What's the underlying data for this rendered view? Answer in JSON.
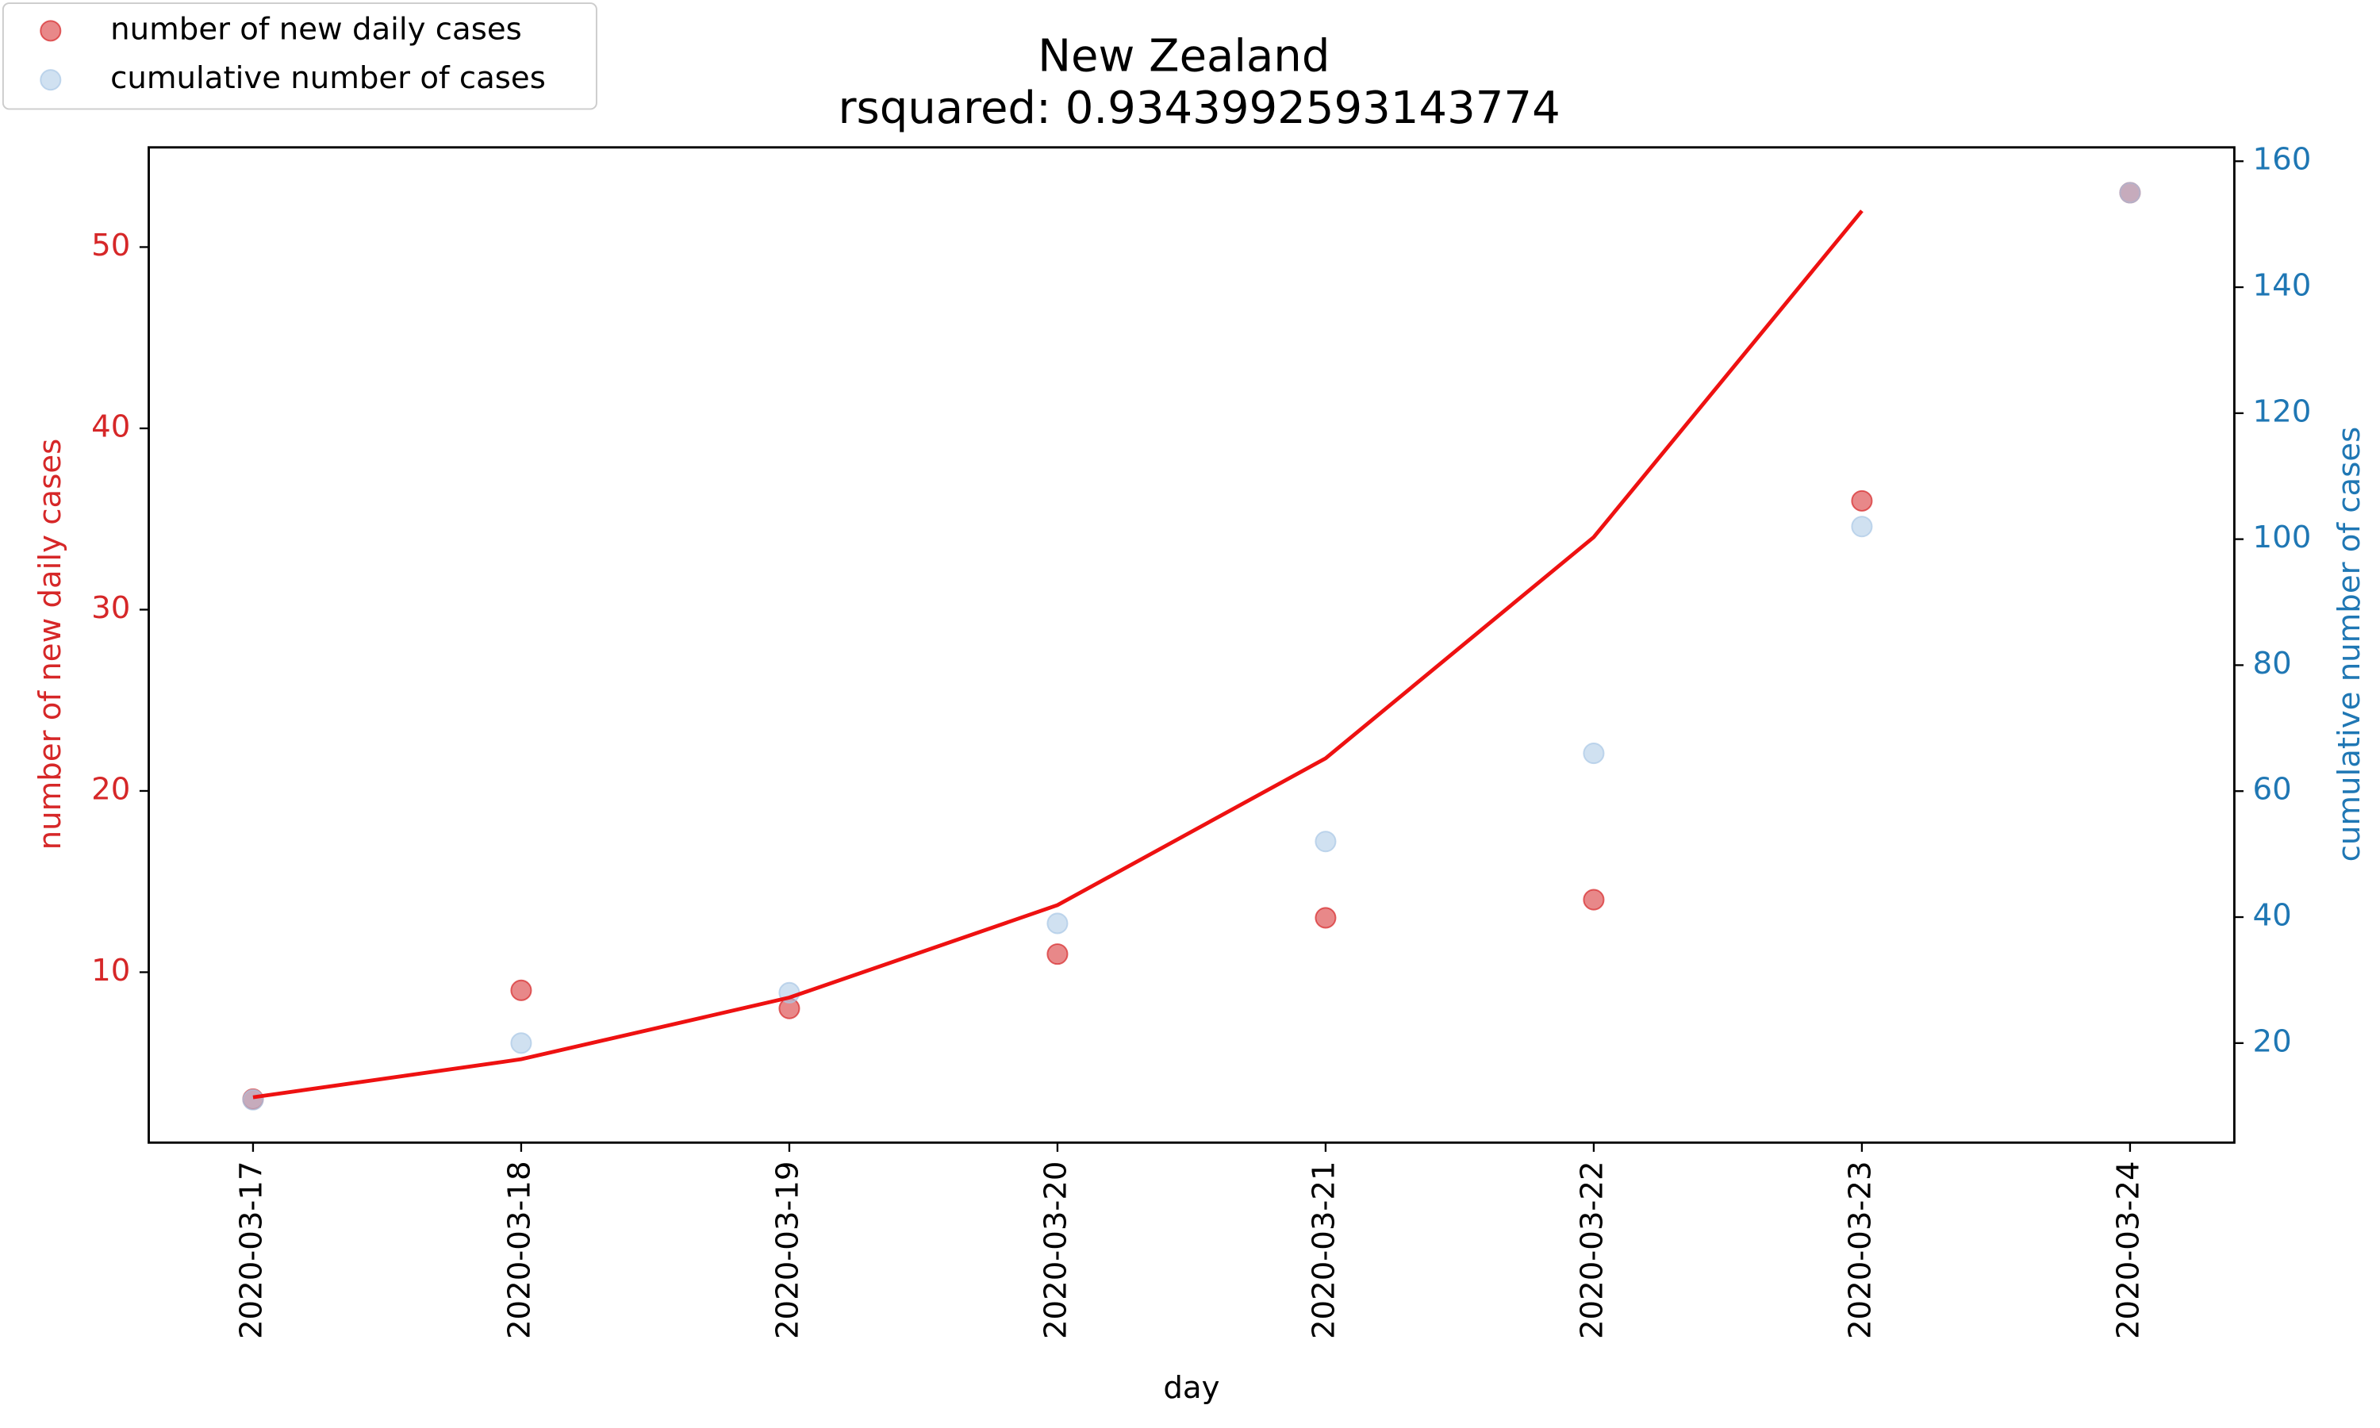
{
  "chart_data": {
    "type": "scatter",
    "title": "New Zealand",
    "subtitle": "rsquared: 0.9343992593143774",
    "x_label": "day",
    "y_label": "number of new daily cases",
    "y2_label": "cumulative number of cases",
    "categories": [
      "2020-03-17",
      "2020-03-18",
      "2020-03-19",
      "2020-03-20",
      "2020-03-21",
      "2020-03-22",
      "2020-03-23",
      "2020-03-24"
    ],
    "series": [
      {
        "name": "number of new daily cases",
        "color": "#d62728",
        "values": [
          3,
          9,
          8,
          11,
          13,
          14,
          36,
          53
        ]
      },
      {
        "name": "cumulative number of cases",
        "color": "#a9c8e6",
        "axis": "y2",
        "values": [
          11,
          20,
          28,
          39,
          52,
          66,
          102,
          155
        ]
      }
    ],
    "fit_line": {
      "color": "#ee1111",
      "values": [
        3.1,
        5.2,
        8.6,
        13.7,
        21.8,
        34.0,
        52.0,
        null
      ]
    },
    "ylim": [
      0.6,
      55.5
    ],
    "yticks": [
      10,
      20,
      30,
      40,
      50
    ],
    "y_axis_color": "#d62728",
    "y2lim": [
      4.2,
      162.2
    ],
    "y2ticks": [
      20,
      40,
      60,
      80,
      100,
      120,
      140,
      160
    ],
    "y2_axis_color": "#1f77b4",
    "legend": "upper left",
    "grid": false
  }
}
